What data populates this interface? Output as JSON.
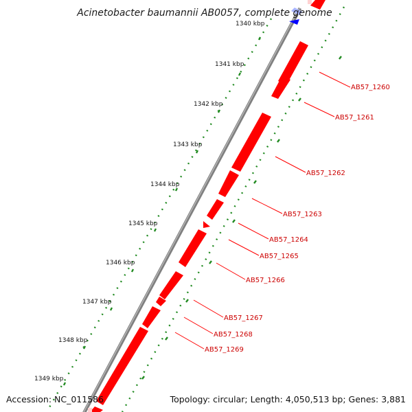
{
  "title": "Acinetobacter baumannii AB0057, complete genome",
  "footer": {
    "accession": "Accession: NC_011586",
    "topology": "Topology: circular; Length: 4,050,513 bp; Genes: 3,881"
  },
  "ticks": [
    "1340 kbp",
    "1341 kbp",
    "1342 kbp",
    "1343 kbp",
    "1344 kbp",
    "1345 kbp",
    "1346 kbp",
    "1347 kbp",
    "1348 kbp",
    "1349 kbp"
  ],
  "genes": [
    "AB57_1260",
    "AB57_1261",
    "AB57_1262",
    "AB57_1263",
    "AB57_1264",
    "AB57_1265",
    "AB57_1266",
    "AB57_1267",
    "AB57_1268",
    "AB57_1269"
  ],
  "colors": {
    "forward_gene": "#ff0000",
    "reverse_gene": "#0000ff",
    "backbone": "#808080",
    "tick_marks": "#228b22",
    "gene_label": "#cc0000"
  }
}
